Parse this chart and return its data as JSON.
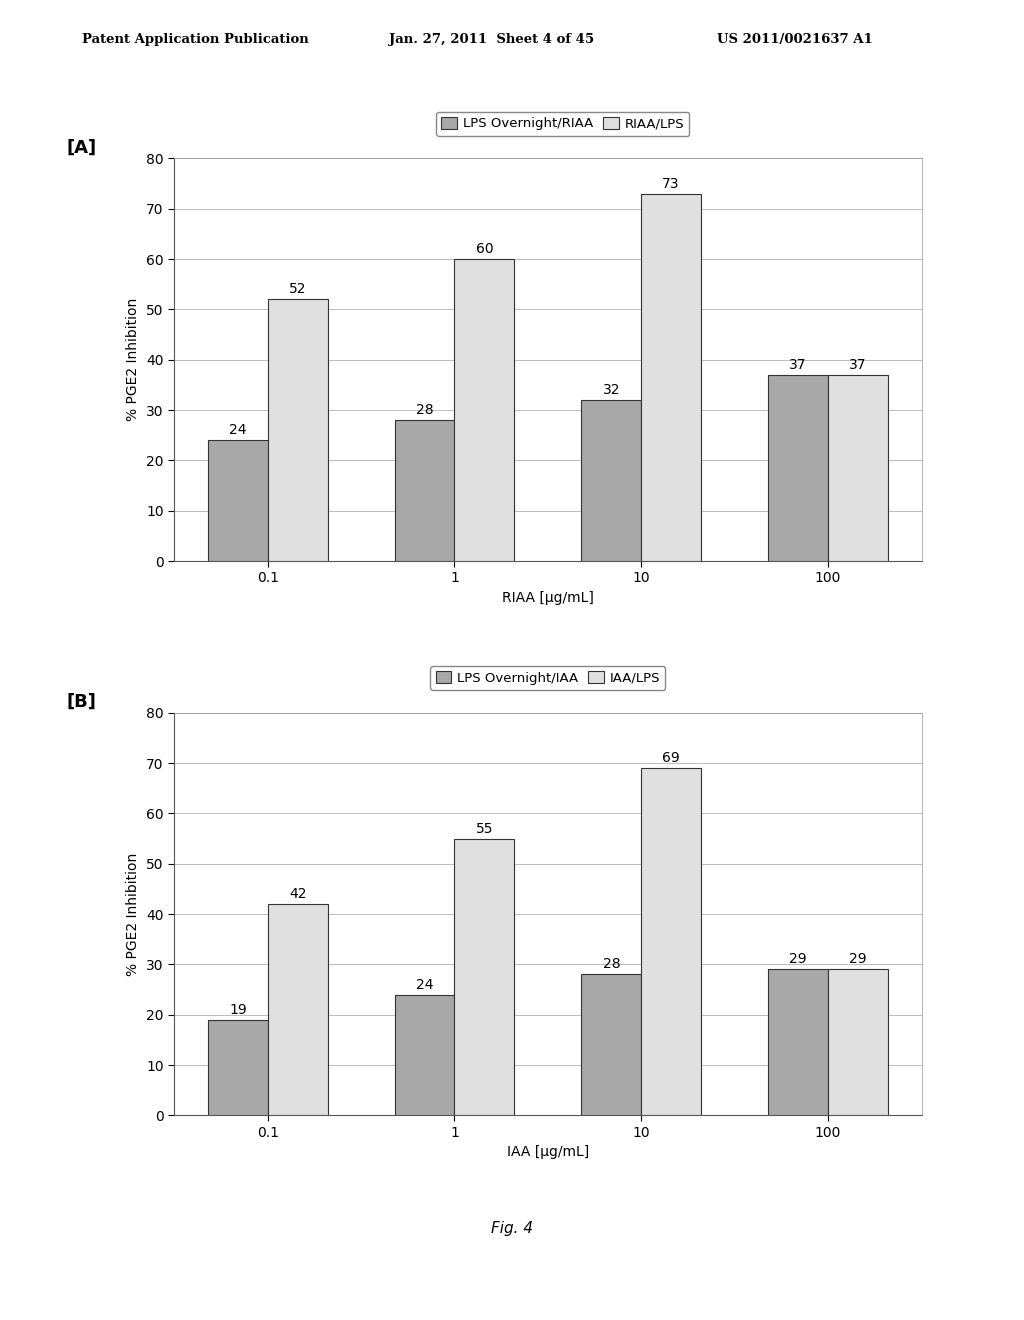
{
  "panel_A": {
    "legend_label1": "LPS Overnight/RIAA",
    "legend_label2": "RIAA/LPS",
    "xlabel": "RIAA [μg/mL]",
    "ylabel": "% PGE2 Inhibition",
    "categories": [
      "0.1",
      "1",
      "10",
      "100"
    ],
    "series1_values": [
      24,
      28,
      32,
      37
    ],
    "series2_values": [
      52,
      60,
      73,
      37
    ],
    "ylim": [
      0,
      80
    ],
    "yticks": [
      0,
      10,
      20,
      30,
      40,
      50,
      60,
      70,
      80
    ]
  },
  "panel_B": {
    "legend_label1": "LPS Overnight/IAA",
    "legend_label2": "IAA/LPS",
    "xlabel": "IAA [μg/mL]",
    "ylabel": "% PGE2 Inhibition",
    "categories": [
      "0.1",
      "1",
      "10",
      "100"
    ],
    "series1_values": [
      19,
      24,
      28,
      29
    ],
    "series2_values": [
      42,
      55,
      69,
      29
    ],
    "ylim": [
      0,
      80
    ],
    "yticks": [
      0,
      10,
      20,
      30,
      40,
      50,
      60,
      70,
      80
    ]
  },
  "bar_width": 0.32,
  "color_series1": "#a8a8a8",
  "color_series2": "#e0e0e0",
  "bar_edge_color": "#333333",
  "bg_color": "#ffffff",
  "fig_label": "Fig. 4",
  "label_fontsize": 9.5,
  "axis_fontsize": 10,
  "tick_fontsize": 10,
  "annotation_fontsize": 10,
  "panel_label_fontsize": 13
}
